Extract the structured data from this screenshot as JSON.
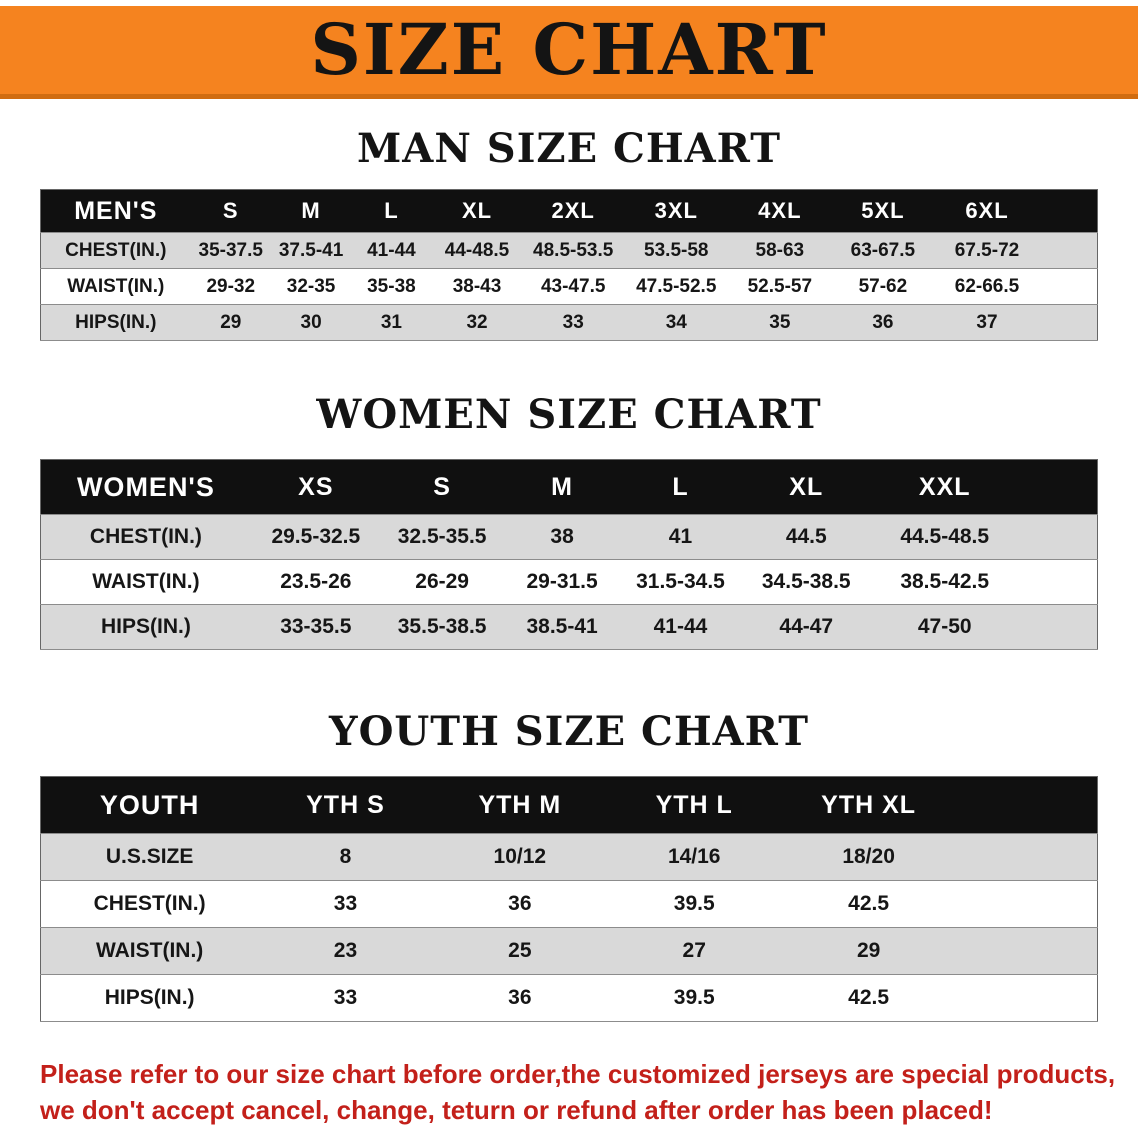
{
  "banner": {
    "title": "SIZE CHART",
    "bg_color": "#f5831f",
    "text_color": "#141414"
  },
  "sections": [
    {
      "heading": "MAN SIZE CHART",
      "table": {
        "header": [
          "MEN'S",
          "S",
          "M",
          "L",
          "XL",
          "2XL",
          "3XL",
          "4XL",
          "5XL",
          "6XL"
        ],
        "rows": [
          [
            "CHEST(IN.)",
            "35-37.5",
            "37.5-41",
            "41-44",
            "44-48.5",
            "48.5-53.5",
            "53.5-58",
            "58-63",
            "63-67.5",
            "67.5-72"
          ],
          [
            "WAIST(IN.)",
            "29-32",
            "32-35",
            "35-38",
            "38-43",
            "43-47.5",
            "47.5-52.5",
            "52.5-57",
            "57-62",
            "62-66.5"
          ],
          [
            "HIPS(IN.)",
            "29",
            "30",
            "31",
            "32",
            "33",
            "34",
            "35",
            "36",
            "37"
          ]
        ]
      }
    },
    {
      "heading": "WOMEN SIZE CHART",
      "table": {
        "header": [
          "WOMEN'S",
          "XS",
          "S",
          "M",
          "L",
          "XL",
          "XXL"
        ],
        "rows": [
          [
            "CHEST(IN.)",
            "29.5-32.5",
            "32.5-35.5",
            "38",
            "41",
            "44.5",
            "44.5-48.5"
          ],
          [
            "WAIST(IN.)",
            "23.5-26",
            "26-29",
            "29-31.5",
            "31.5-34.5",
            "34.5-38.5",
            "38.5-42.5"
          ],
          [
            "HIPS(IN.)",
            "33-35.5",
            "35.5-38.5",
            "38.5-41",
            "41-44",
            "44-47",
            "47-50"
          ]
        ]
      }
    },
    {
      "heading": "YOUTH SIZE CHART",
      "table": {
        "header": [
          "YOUTH",
          "YTH S",
          "YTH M",
          "YTH L",
          "YTH XL"
        ],
        "rows": [
          [
            "U.S.SIZE",
            "8",
            "10/12",
            "14/16",
            "18/20"
          ],
          [
            "CHEST(IN.)",
            "33",
            "36",
            "39.5",
            "42.5"
          ],
          [
            "WAIST(IN.)",
            "23",
            "25",
            "27",
            "29"
          ],
          [
            "HIPS(IN.)",
            "33",
            "36",
            "39.5",
            "42.5"
          ]
        ]
      }
    }
  ],
  "footer": {
    "line1": "Please refer to our size chart before order,the customized jerseys are special products,",
    "line2": "we don't accept cancel, change, teturn or refund after order has been placed!",
    "text_color": "#c3201a"
  },
  "colors": {
    "banner_orange": "#f5831f",
    "banner_edge": "#d06c10",
    "table_header_bg": "#101010",
    "table_header_text": "#ffffff",
    "row_gray": "#d9d9d9",
    "row_white": "#ffffff",
    "disclaimer_red": "#c3201a"
  }
}
